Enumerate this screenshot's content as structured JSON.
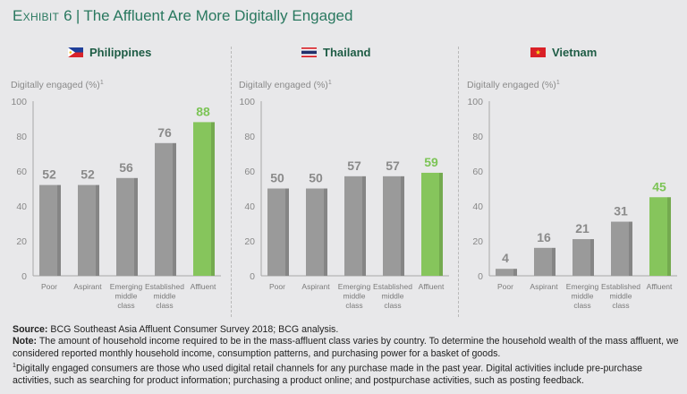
{
  "exhibit": {
    "label": "Exhibit 6",
    "title": "The Affluent Are More Digitally Engaged"
  },
  "colors": {
    "title": "#29785f",
    "country": "#1e5c45",
    "bar": "#9a9a9a",
    "bar_shade": "#858585",
    "highlight": "#86c55c",
    "highlight_shade": "#74aa4f",
    "label_gray": "#8a8a8a",
    "label_green": "#7cc456",
    "axis": "#a8a8a8",
    "tick_text": "#888888"
  },
  "chart_data": [
    {
      "type": "bar",
      "country": "Philippines",
      "flag": "philippines-flag",
      "ylabel": "Digitally engaged (%)",
      "ylabel_sup": "1",
      "ylim": [
        0,
        100
      ],
      "yticks": [
        0,
        20,
        40,
        60,
        80,
        100
      ],
      "categories": [
        "Poor",
        "Aspirant",
        "Emerging middle class",
        "Established middle class",
        "Affluent"
      ],
      "category_lines": [
        [
          "Poor"
        ],
        [
          "Aspirant"
        ],
        [
          "Emerging",
          "middle",
          "class"
        ],
        [
          "Established",
          "middle",
          "class"
        ],
        [
          "Affluent"
        ]
      ],
      "values": [
        52,
        52,
        56,
        76,
        88
      ],
      "highlight": "Affluent",
      "grid": false
    },
    {
      "type": "bar",
      "country": "Thailand",
      "flag": "thailand-flag",
      "ylabel": "Digitally engaged (%)",
      "ylabel_sup": "1",
      "ylim": [
        0,
        100
      ],
      "yticks": [
        0,
        20,
        40,
        60,
        80,
        100
      ],
      "categories": [
        "Poor",
        "Aspirant",
        "Emerging middle class",
        "Established middle class",
        "Affluent"
      ],
      "category_lines": [
        [
          "Poor"
        ],
        [
          "Aspirant"
        ],
        [
          "Emerging",
          "middle",
          "class"
        ],
        [
          "Established",
          "middle",
          "class"
        ],
        [
          "Affluent"
        ]
      ],
      "values": [
        50,
        50,
        57,
        57,
        59
      ],
      "highlight": "Affluent",
      "grid": false
    },
    {
      "type": "bar",
      "country": "Vietnam",
      "flag": "vietnam-flag",
      "ylabel": "Digitally engaged (%)",
      "ylabel_sup": "1",
      "ylim": [
        0,
        100
      ],
      "yticks": [
        0,
        20,
        40,
        60,
        80,
        100
      ],
      "categories": [
        "Poor",
        "Aspirant",
        "Emerging middle class",
        "Established middle class",
        "Affluent"
      ],
      "category_lines": [
        [
          "Poor"
        ],
        [
          "Aspirant"
        ],
        [
          "Emerging",
          "middle",
          "class"
        ],
        [
          "Established",
          "middle",
          "class"
        ],
        [
          "Affluent"
        ]
      ],
      "values": [
        4,
        16,
        21,
        31,
        45
      ],
      "highlight": "Affluent",
      "grid": false
    }
  ],
  "notes": {
    "source_label": "Source:",
    "source_text": " BCG Southeast Asia Affluent Consumer Survey 2018; BCG analysis.",
    "note_label": "Note:",
    "note_text": " The amount of household income required to be in the mass-affluent class varies by country. To determine the household wealth of the mass affluent, we considered reported monthly household income, consumption patterns, and purchasing power for a basket of goods.",
    "footnote_sup": "1",
    "footnote_text": "Digitally engaged consumers are those who used digital retail channels for any purchase made in the past year. Digital activities include pre-purchase activities, such as searching for product information; purchasing a product online; and postpurchase activities, such as posting feedback."
  }
}
